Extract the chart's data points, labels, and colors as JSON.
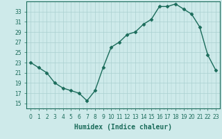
{
  "x": [
    0,
    1,
    2,
    3,
    4,
    5,
    6,
    7,
    8,
    9,
    10,
    11,
    12,
    13,
    14,
    15,
    16,
    17,
    18,
    19,
    20,
    21,
    22,
    23
  ],
  "y": [
    23,
    22,
    21,
    19,
    18,
    17.5,
    17,
    15.5,
    17.5,
    22,
    26,
    27,
    28.5,
    29,
    30.5,
    31.5,
    34,
    34,
    34.5,
    33.5,
    32.5,
    30,
    24.5,
    21.5
  ],
  "line_color": "#1a6b5a",
  "marker": "D",
  "marker_size": 2.5,
  "bg_color": "#ceeaea",
  "grid_color": "#aacfcf",
  "xlabel": "Humidex (Indice chaleur)",
  "xlabel_fontsize": 7,
  "ylim": [
    14,
    35
  ],
  "yticks": [
    15,
    17,
    19,
    21,
    23,
    25,
    27,
    29,
    31,
    33
  ],
  "xticks": [
    0,
    1,
    2,
    3,
    4,
    5,
    6,
    7,
    8,
    9,
    10,
    11,
    12,
    13,
    14,
    15,
    16,
    17,
    18,
    19,
    20,
    21,
    22,
    23
  ],
  "tick_fontsize": 5.5,
  "line_width": 1.0
}
